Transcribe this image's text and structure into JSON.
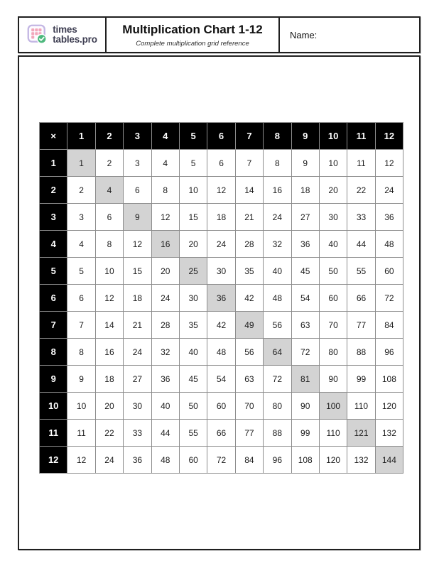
{
  "header": {
    "title": "Multiplication Chart 1-12",
    "subtitle": "Complete multiplication grid reference",
    "name_label": "Name:"
  },
  "logo": {
    "line1": "times",
    "line2": "tables.pro",
    "icon": "grid-check-icon"
  },
  "colors": {
    "frame_border": "#1f1f1f",
    "header_cell_bg": "#000000",
    "header_cell_text": "#ffffff",
    "diagonal_cell_bg": "#d3d3d3",
    "cell_border": "#8c8c8c",
    "logo_pink": "#f2a6ba",
    "logo_lavender": "#c3b6e3",
    "logo_green": "#4db87d",
    "logo_text_color": "#3c3c50"
  },
  "table": {
    "operator": "×",
    "col_headers": [
      "1",
      "2",
      "3",
      "4",
      "5",
      "6",
      "7",
      "8",
      "9",
      "10",
      "11",
      "12"
    ],
    "rows": [
      {
        "label": "1",
        "values": [
          1,
          2,
          3,
          4,
          5,
          6,
          7,
          8,
          9,
          10,
          11,
          12
        ]
      },
      {
        "label": "2",
        "values": [
          2,
          4,
          6,
          8,
          10,
          12,
          14,
          16,
          18,
          20,
          22,
          24
        ]
      },
      {
        "label": "3",
        "values": [
          3,
          6,
          9,
          12,
          15,
          18,
          21,
          24,
          27,
          30,
          33,
          36
        ]
      },
      {
        "label": "4",
        "values": [
          4,
          8,
          12,
          16,
          20,
          24,
          28,
          32,
          36,
          40,
          44,
          48
        ]
      },
      {
        "label": "5",
        "values": [
          5,
          10,
          15,
          20,
          25,
          30,
          35,
          40,
          45,
          50,
          55,
          60
        ]
      },
      {
        "label": "6",
        "values": [
          6,
          12,
          18,
          24,
          30,
          36,
          42,
          48,
          54,
          60,
          66,
          72
        ]
      },
      {
        "label": "7",
        "values": [
          7,
          14,
          21,
          28,
          35,
          42,
          49,
          56,
          63,
          70,
          77,
          84
        ]
      },
      {
        "label": "8",
        "values": [
          8,
          16,
          24,
          32,
          40,
          48,
          56,
          64,
          72,
          80,
          88,
          96
        ]
      },
      {
        "label": "9",
        "values": [
          9,
          18,
          27,
          36,
          45,
          54,
          63,
          72,
          81,
          90,
          99,
          108
        ]
      },
      {
        "label": "10",
        "values": [
          10,
          20,
          30,
          40,
          50,
          60,
          70,
          80,
          90,
          100,
          110,
          120
        ]
      },
      {
        "label": "11",
        "values": [
          11,
          22,
          33,
          44,
          55,
          66,
          77,
          88,
          99,
          110,
          121,
          132
        ]
      },
      {
        "label": "12",
        "values": [
          12,
          24,
          36,
          48,
          60,
          72,
          84,
          96,
          108,
          120,
          132,
          144
        ]
      }
    ],
    "highlight_rule": "diagonal-squares"
  }
}
